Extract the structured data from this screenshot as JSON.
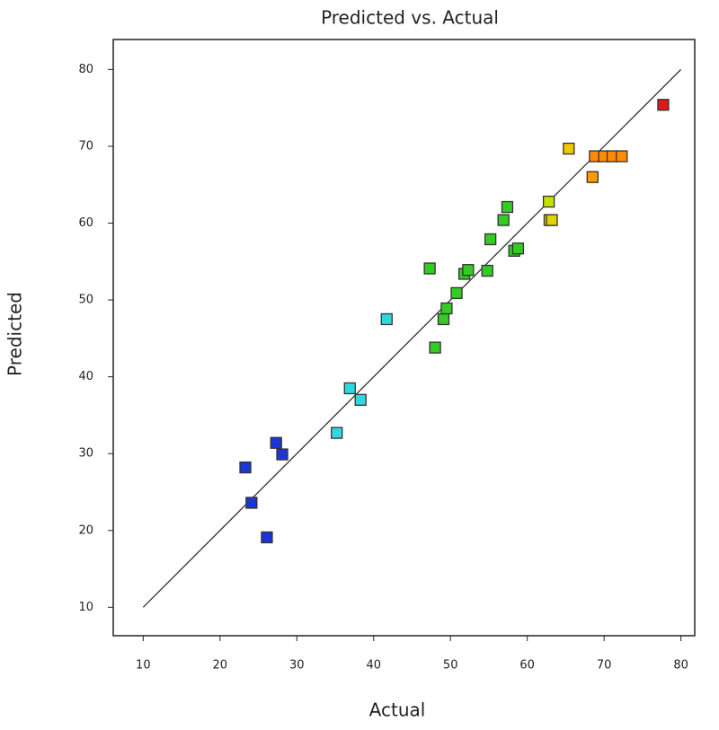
{
  "chart_data": {
    "type": "scatter",
    "title": "Predicted vs. Actual",
    "x_label": "Actual",
    "y_label": "Predicted",
    "x": [
      23.3,
      24.1,
      26.1,
      27.3,
      28.1,
      35.2,
      36.9,
      38.3,
      41.7,
      47.3,
      48.0,
      49.1,
      49.5,
      50.8,
      51.8,
      52.3,
      54.8,
      55.2,
      56.9,
      57.4,
      58.3,
      58.8,
      62.8,
      62.9,
      63.2,
      65.4,
      68.5,
      68.8,
      70.0,
      71.1,
      72.3,
      77.7
    ],
    "values": [
      28.2,
      23.6,
      19.1,
      31.4,
      29.9,
      32.7,
      38.5,
      37.0,
      47.5,
      54.1,
      43.8,
      47.5,
      48.9,
      50.9,
      53.4,
      53.9,
      53.8,
      57.9,
      60.4,
      62.1,
      56.4,
      56.7,
      62.8,
      60.4,
      60.4,
      69.7,
      66.0,
      68.7,
      68.7,
      68.7,
      68.7,
      75.4
    ],
    "colors": [
      "#1a35d8",
      "#1a35d8",
      "#1a35d8",
      "#1a35d8",
      "#1a35d8",
      "#2ed8e0",
      "#2ed8e0",
      "#2ed8e0",
      "#2ed8e0",
      "#33cc22",
      "#33cc22",
      "#33cc22",
      "#33cc22",
      "#33cc22",
      "#33cc22",
      "#33cc22",
      "#33cc22",
      "#33cc22",
      "#33cc22",
      "#33cc22",
      "#33cc22",
      "#33cc22",
      "#c8e000",
      "#e0d400",
      "#e0d400",
      "#f0c800",
      "#ff9a00",
      "#ff8c00",
      "#ff8c00",
      "#ff8c00",
      "#ff8c00",
      "#e01818"
    ],
    "reference_line": {
      "x": [
        10,
        80
      ],
      "y": [
        10,
        80
      ]
    },
    "xlim": [
      6.1,
      81.8
    ],
    "ylim": [
      6.3,
      83.9
    ],
    "xticks": [
      10,
      20,
      30,
      40,
      50,
      60,
      70,
      80
    ],
    "yticks": [
      10,
      20,
      30,
      40,
      50,
      60,
      70,
      80
    ]
  }
}
